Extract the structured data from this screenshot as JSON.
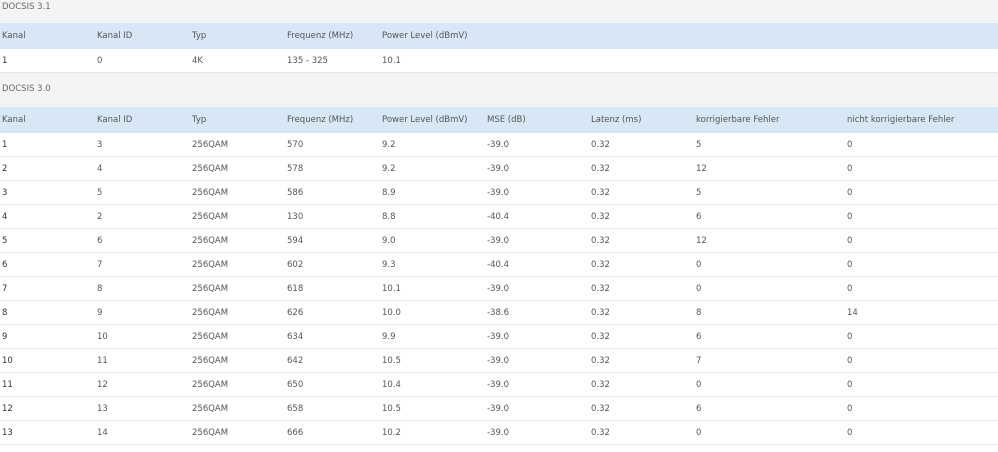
{
  "sections": [
    {
      "title": "DOCSIS 3.1",
      "headers": [
        "Kanal",
        "Kanal ID",
        "Typ",
        "Frequenz (MHz)",
        "Power Level (dBmV)"
      ],
      "rows": [
        [
          "1",
          "0",
          "4K",
          "135 - 325",
          "10.1"
        ]
      ]
    },
    {
      "title": "DOCSIS 3.0",
      "headers": [
        "Kanal",
        "Kanal ID",
        "Typ",
        "Frequenz (MHz)",
        "Power Level (dBmV)",
        "MSE (dB)",
        "Latenz (ms)",
        "korrigierbare Fehler",
        "nicht korrigierbare Fehler"
      ],
      "rows": [
        [
          "1",
          "3",
          "256QAM",
          "570",
          "9.2",
          "-39.0",
          "0.32",
          "5",
          "0"
        ],
        [
          "2",
          "4",
          "256QAM",
          "578",
          "9.2",
          "-39.0",
          "0.32",
          "12",
          "0"
        ],
        [
          "3",
          "5",
          "256QAM",
          "586",
          "8.9",
          "-39.0",
          "0.32",
          "5",
          "0"
        ],
        [
          "4",
          "2",
          "256QAM",
          "130",
          "8.8",
          "-40.4",
          "0.32",
          "6",
          "0"
        ],
        [
          "5",
          "6",
          "256QAM",
          "594",
          "9.0",
          "-39.0",
          "0.32",
          "12",
          "0"
        ],
        [
          "6",
          "7",
          "256QAM",
          "602",
          "9.3",
          "-40.4",
          "0.32",
          "0",
          "0"
        ],
        [
          "7",
          "8",
          "256QAM",
          "618",
          "10.1",
          "-39.0",
          "0.32",
          "0",
          "0"
        ],
        [
          "8",
          "9",
          "256QAM",
          "626",
          "10.0",
          "-38.6",
          "0.32",
          "8",
          "14"
        ],
        [
          "9",
          "10",
          "256QAM",
          "634",
          "9.9",
          "-39.0",
          "0.32",
          "6",
          "0"
        ],
        [
          "10",
          "11",
          "256QAM",
          "642",
          "10.5",
          "-39.0",
          "0.32",
          "7",
          "0"
        ],
        [
          "11",
          "12",
          "256QAM",
          "650",
          "10.4",
          "-39.0",
          "0.32",
          "0",
          "0"
        ],
        [
          "12",
          "13",
          "256QAM",
          "658",
          "10.5",
          "-39.0",
          "0.32",
          "6",
          "0"
        ],
        [
          "13",
          "14",
          "256QAM",
          "666",
          "10.2",
          "-39.0",
          "0.32",
          "0",
          "0"
        ]
      ]
    }
  ]
}
